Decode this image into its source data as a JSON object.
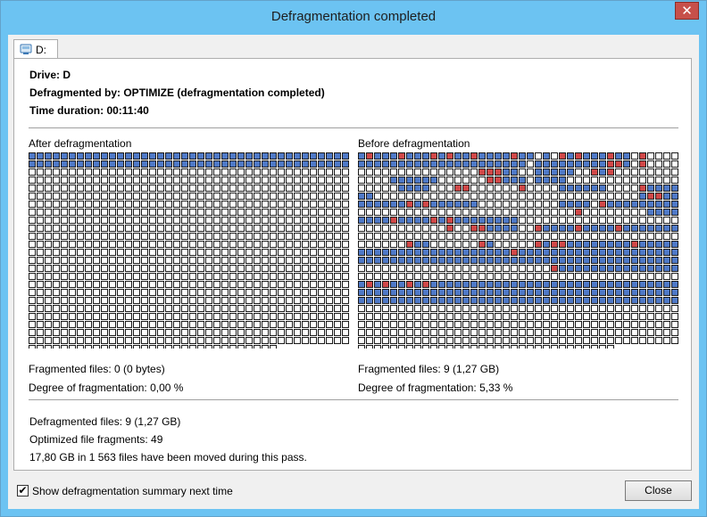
{
  "window": {
    "title": "Defragmentation completed",
    "close_glyph": "✕"
  },
  "tab": {
    "label": "D:",
    "icon": "drive-icon"
  },
  "summary": {
    "drive": "Drive: D",
    "defragmented_by": "Defragmented by: OPTIMIZE (defragmentation completed)",
    "duration": "Time duration: 00:11:40"
  },
  "after": {
    "heading": "After defragmentation",
    "fragmented_files": "Fragmented files: 0 (0 bytes)",
    "degree": "Degree of fragmentation: 0,00 %"
  },
  "before": {
    "heading": "Before defragmentation",
    "fragmented_files": "Fragmented files: 9 (1,27 GB)",
    "degree": "Degree of fragmentation: 5,33 %"
  },
  "results": {
    "defragmented_files": "Defragmented files: 9 (1,27 GB)",
    "optimized_fragments": "Optimized file fragments: 49",
    "moved": "17,80 GB in 1 563 files have been moved during this pass."
  },
  "footer": {
    "show_summary_label": "Show defragmentation summary next time",
    "show_summary_checked": true,
    "check_glyph": "✔",
    "close_label": "Close"
  },
  "colors": {
    "used": "#4f79c7",
    "fragmented": "#d04848",
    "free": "#ffffff"
  },
  "grid": {
    "cols": 40,
    "rows": 25,
    "after_full_rows": 2,
    "after_last_row_cells": 31,
    "before_last_row_cells": 32,
    "before_cells": [
      [
        0,
        "B"
      ],
      [
        1,
        "R"
      ],
      [
        2,
        "B"
      ],
      [
        3,
        "B"
      ],
      [
        4,
        "B"
      ],
      [
        5,
        "R"
      ],
      [
        6,
        "B"
      ],
      [
        7,
        "B"
      ],
      [
        8,
        "B"
      ],
      [
        9,
        "R"
      ],
      [
        10,
        "B"
      ],
      [
        11,
        "R"
      ],
      [
        12,
        "B"
      ],
      [
        13,
        "B"
      ],
      [
        14,
        "R"
      ],
      [
        15,
        "B"
      ],
      [
        16,
        "B"
      ],
      [
        17,
        "B"
      ],
      [
        18,
        "B"
      ],
      [
        19,
        "R"
      ],
      [
        20,
        "B"
      ],
      [
        21,
        "B"
      ],
      [
        23,
        "B"
      ],
      [
        25,
        "R"
      ],
      [
        26,
        "B"
      ],
      [
        27,
        "R"
      ],
      [
        28,
        "B"
      ],
      [
        29,
        "B"
      ],
      [
        30,
        "B"
      ],
      [
        31,
        "R"
      ],
      [
        32,
        "B"
      ],
      [
        33,
        "B"
      ],
      [
        35,
        "R"
      ],
      [
        40,
        "B"
      ],
      [
        41,
        "B"
      ],
      [
        42,
        "B"
      ],
      [
        43,
        "B"
      ],
      [
        44,
        "B"
      ],
      [
        45,
        "B"
      ],
      [
        46,
        "B"
      ],
      [
        47,
        "B"
      ],
      [
        48,
        "B"
      ],
      [
        49,
        "B"
      ],
      [
        50,
        "B"
      ],
      [
        51,
        "B"
      ],
      [
        52,
        "B"
      ],
      [
        53,
        "B"
      ],
      [
        54,
        "B"
      ],
      [
        55,
        "B"
      ],
      [
        56,
        "B"
      ],
      [
        57,
        "B"
      ],
      [
        58,
        "B"
      ],
      [
        59,
        "B"
      ],
      [
        60,
        "B"
      ],
      [
        62,
        "B"
      ],
      [
        63,
        "B"
      ],
      [
        64,
        "B"
      ],
      [
        65,
        "B"
      ],
      [
        66,
        "B"
      ],
      [
        67,
        "B"
      ],
      [
        68,
        "B"
      ],
      [
        69,
        "B"
      ],
      [
        70,
        "B"
      ],
      [
        71,
        "R"
      ],
      [
        72,
        "R"
      ],
      [
        73,
        "B"
      ],
      [
        75,
        "R"
      ],
      [
        95,
        "R"
      ],
      [
        96,
        "R"
      ],
      [
        97,
        "R"
      ],
      [
        98,
        "B"
      ],
      [
        99,
        "B"
      ],
      [
        102,
        "B"
      ],
      [
        103,
        "B"
      ],
      [
        104,
        "B"
      ],
      [
        105,
        "B"
      ],
      [
        106,
        "B"
      ],
      [
        109,
        "R"
      ],
      [
        110,
        "B"
      ],
      [
        111,
        "R"
      ],
      [
        124,
        "B"
      ],
      [
        125,
        "B"
      ],
      [
        126,
        "B"
      ],
      [
        127,
        "B"
      ],
      [
        128,
        "B"
      ],
      [
        129,
        "B"
      ],
      [
        136,
        "R"
      ],
      [
        137,
        "R"
      ],
      [
        138,
        "B"
      ],
      [
        139,
        "B"
      ],
      [
        140,
        "B"
      ],
      [
        142,
        "B"
      ],
      [
        143,
        "B"
      ],
      [
        144,
        "B"
      ],
      [
        145,
        "B"
      ],
      [
        165,
        "B"
      ],
      [
        166,
        "B"
      ],
      [
        167,
        "B"
      ],
      [
        168,
        "B"
      ],
      [
        172,
        "R"
      ],
      [
        173,
        "R"
      ],
      [
        180,
        "R"
      ],
      [
        185,
        "B"
      ],
      [
        186,
        "B"
      ],
      [
        187,
        "B"
      ],
      [
        188,
        "B"
      ],
      [
        189,
        "B"
      ],
      [
        190,
        "B"
      ],
      [
        195,
        "R"
      ],
      [
        196,
        "B"
      ],
      [
        197,
        "B"
      ],
      [
        198,
        "B"
      ],
      [
        199,
        "B"
      ],
      [
        200,
        "B"
      ],
      [
        201,
        "B"
      ],
      [
        236,
        "R"
      ],
      [
        235,
        "B"
      ],
      [
        237,
        "R"
      ],
      [
        238,
        "B"
      ],
      [
        239,
        "B"
      ],
      [
        240,
        "B"
      ],
      [
        241,
        "B"
      ],
      [
        242,
        "B"
      ],
      [
        243,
        "B"
      ],
      [
        244,
        "B"
      ],
      [
        245,
        "B"
      ],
      [
        246,
        "R"
      ],
      [
        247,
        "B"
      ],
      [
        248,
        "R"
      ],
      [
        249,
        "B"
      ],
      [
        250,
        "B"
      ],
      [
        251,
        "B"
      ],
      [
        252,
        "B"
      ],
      [
        253,
        "B"
      ],
      [
        254,
        "B"
      ],
      [
        265,
        "B"
      ],
      [
        266,
        "B"
      ],
      [
        267,
        "B"
      ],
      [
        268,
        "B"
      ],
      [
        270,
        "R"
      ],
      [
        271,
        "B"
      ],
      [
        272,
        "B"
      ],
      [
        273,
        "B"
      ],
      [
        274,
        "B"
      ],
      [
        275,
        "B"
      ],
      [
        276,
        "B"
      ],
      [
        277,
        "B"
      ],
      [
        278,
        "B"
      ],
      [
        279,
        "B"
      ],
      [
        307,
        "R"
      ],
      [
        316,
        "B"
      ],
      [
        317,
        "B"
      ],
      [
        318,
        "B"
      ],
      [
        319,
        "B"
      ],
      [
        320,
        "B"
      ],
      [
        321,
        "B"
      ],
      [
        322,
        "B"
      ],
      [
        323,
        "B"
      ],
      [
        324,
        "R"
      ],
      [
        325,
        "B"
      ],
      [
        326,
        "B"
      ],
      [
        327,
        "B"
      ],
      [
        328,
        "B"
      ],
      [
        329,
        "R"
      ],
      [
        330,
        "B"
      ],
      [
        331,
        "R"
      ],
      [
        332,
        "B"
      ],
      [
        333,
        "B"
      ],
      [
        334,
        "B"
      ],
      [
        335,
        "B"
      ],
      [
        336,
        "B"
      ],
      [
        337,
        "B"
      ],
      [
        338,
        "B"
      ],
      [
        339,
        "B"
      ],
      [
        371,
        "R"
      ],
      [
        374,
        "R"
      ],
      [
        375,
        "R"
      ],
      [
        376,
        "B"
      ],
      [
        377,
        "B"
      ],
      [
        378,
        "B"
      ],
      [
        379,
        "B"
      ],
      [
        382,
        "R"
      ],
      [
        383,
        "B"
      ],
      [
        384,
        "B"
      ],
      [
        385,
        "B"
      ],
      [
        386,
        "B"
      ],
      [
        387,
        "R"
      ],
      [
        388,
        "B"
      ],
      [
        389,
        "B"
      ],
      [
        390,
        "B"
      ],
      [
        391,
        "B"
      ],
      [
        392,
        "R"
      ],
      [
        393,
        "B"
      ],
      [
        394,
        "B"
      ],
      [
        395,
        "B"
      ],
      [
        396,
        "B"
      ],
      [
        397,
        "B"
      ],
      [
        398,
        "B"
      ],
      [
        399,
        "B"
      ],
      [
        446,
        "R"
      ],
      [
        447,
        "B"
      ],
      [
        448,
        "B"
      ],
      [
        455,
        "R"
      ],
      [
        456,
        "B"
      ],
      [
        462,
        "R"
      ],
      [
        463,
        "B"
      ],
      [
        464,
        "R"
      ],
      [
        465,
        "R"
      ],
      [
        466,
        "B"
      ],
      [
        467,
        "B"
      ],
      [
        468,
        "B"
      ],
      [
        469,
        "B"
      ],
      [
        470,
        "B"
      ],
      [
        471,
        "B"
      ],
      [
        472,
        "B"
      ],
      [
        473,
        "B"
      ],
      [
        474,
        "R"
      ],
      [
        475,
        "B"
      ],
      [
        476,
        "B"
      ],
      [
        477,
        "B"
      ],
      [
        478,
        "B"
      ],
      [
        479,
        "B"
      ],
      [
        480,
        "B"
      ],
      [
        481,
        "B"
      ],
      [
        482,
        "B"
      ],
      [
        483,
        "B"
      ],
      [
        484,
        "B"
      ],
      [
        485,
        "B"
      ],
      [
        486,
        "B"
      ],
      [
        487,
        "B"
      ],
      [
        488,
        "B"
      ],
      [
        489,
        "B"
      ],
      [
        490,
        "B"
      ],
      [
        491,
        "B"
      ],
      [
        492,
        "B"
      ],
      [
        493,
        "B"
      ],
      [
        494,
        "B"
      ],
      [
        495,
        "B"
      ],
      [
        496,
        "B"
      ],
      [
        497,
        "B"
      ],
      [
        498,
        "B"
      ],
      [
        499,
        "R"
      ],
      [
        500,
        "B"
      ],
      [
        501,
        "B"
      ],
      [
        502,
        "B"
      ],
      [
        503,
        "B"
      ],
      [
        504,
        "B"
      ],
      [
        505,
        "B"
      ],
      [
        506,
        "B"
      ],
      [
        507,
        "B"
      ],
      [
        508,
        "B"
      ],
      [
        509,
        "B"
      ],
      [
        510,
        "B"
      ],
      [
        511,
        "B"
      ],
      [
        512,
        "B"
      ],
      [
        513,
        "B"
      ],
      [
        514,
        "B"
      ],
      [
        515,
        "B"
      ],
      [
        516,
        "B"
      ],
      [
        517,
        "B"
      ],
      [
        518,
        "B"
      ],
      [
        519,
        "B"
      ],
      [
        520,
        "B"
      ],
      [
        521,
        "B"
      ],
      [
        522,
        "B"
      ],
      [
        523,
        "B"
      ],
      [
        524,
        "B"
      ],
      [
        525,
        "B"
      ],
      [
        526,
        "B"
      ],
      [
        527,
        "B"
      ],
      [
        528,
        "B"
      ],
      [
        529,
        "B"
      ],
      [
        530,
        "B"
      ],
      [
        531,
        "B"
      ],
      [
        532,
        "B"
      ],
      [
        533,
        "B"
      ],
      [
        534,
        "B"
      ],
      [
        535,
        "B"
      ],
      [
        536,
        "B"
      ],
      [
        537,
        "B"
      ],
      [
        538,
        "B"
      ],
      [
        539,
        "B"
      ],
      [
        540,
        "B"
      ],
      [
        541,
        "B"
      ],
      [
        542,
        "B"
      ],
      [
        543,
        "B"
      ],
      [
        544,
        "B"
      ],
      [
        545,
        "B"
      ],
      [
        546,
        "B"
      ],
      [
        547,
        "B"
      ],
      [
        548,
        "B"
      ],
      [
        549,
        "B"
      ],
      [
        550,
        "B"
      ],
      [
        551,
        "B"
      ],
      [
        552,
        "B"
      ],
      [
        553,
        "B"
      ],
      [
        554,
        "B"
      ],
      [
        555,
        "B"
      ],
      [
        556,
        "B"
      ],
      [
        557,
        "B"
      ],
      [
        558,
        "B"
      ],
      [
        559,
        "B"
      ],
      [
        584,
        "R"
      ],
      [
        585,
        "B"
      ],
      [
        586,
        "B"
      ],
      [
        587,
        "B"
      ],
      [
        588,
        "B"
      ],
      [
        589,
        "B"
      ],
      [
        590,
        "B"
      ],
      [
        591,
        "B"
      ],
      [
        592,
        "B"
      ],
      [
        593,
        "B"
      ],
      [
        594,
        "B"
      ],
      [
        595,
        "B"
      ],
      [
        596,
        "B"
      ],
      [
        597,
        "B"
      ],
      [
        598,
        "B"
      ],
      [
        599,
        "B"
      ],
      [
        640,
        "B"
      ],
      [
        641,
        "R"
      ],
      [
        642,
        "B"
      ],
      [
        643,
        "R"
      ],
      [
        644,
        "B"
      ],
      [
        645,
        "B"
      ],
      [
        646,
        "R"
      ],
      [
        647,
        "B"
      ],
      [
        648,
        "R"
      ],
      [
        649,
        "B"
      ],
      [
        650,
        "B"
      ],
      [
        651,
        "B"
      ],
      [
        652,
        "B"
      ],
      [
        653,
        "B"
      ],
      [
        654,
        "B"
      ],
      [
        655,
        "B"
      ],
      [
        656,
        "B"
      ],
      [
        657,
        "B"
      ],
      [
        658,
        "B"
      ],
      [
        659,
        "B"
      ],
      [
        660,
        "B"
      ],
      [
        661,
        "B"
      ],
      [
        662,
        "B"
      ],
      [
        663,
        "B"
      ],
      [
        664,
        "B"
      ],
      [
        665,
        "B"
      ],
      [
        666,
        "B"
      ],
      [
        667,
        "B"
      ],
      [
        668,
        "B"
      ],
      [
        669,
        "B"
      ],
      [
        670,
        "B"
      ],
      [
        671,
        "B"
      ],
      [
        672,
        "B"
      ],
      [
        673,
        "B"
      ],
      [
        674,
        "B"
      ],
      [
        675,
        "B"
      ],
      [
        676,
        "B"
      ],
      [
        677,
        "B"
      ],
      [
        678,
        "B"
      ],
      [
        679,
        "B"
      ],
      [
        680,
        "B"
      ],
      [
        681,
        "B"
      ],
      [
        682,
        "B"
      ],
      [
        683,
        "B"
      ],
      [
        684,
        "B"
      ],
      [
        685,
        "B"
      ],
      [
        686,
        "B"
      ],
      [
        687,
        "B"
      ],
      [
        688,
        "B"
      ],
      [
        689,
        "B"
      ],
      [
        690,
        "B"
      ],
      [
        691,
        "B"
      ],
      [
        692,
        "B"
      ],
      [
        693,
        "B"
      ],
      [
        694,
        "B"
      ],
      [
        695,
        "B"
      ],
      [
        696,
        "B"
      ],
      [
        697,
        "B"
      ],
      [
        698,
        "B"
      ],
      [
        699,
        "B"
      ],
      [
        700,
        "B"
      ],
      [
        701,
        "B"
      ],
      [
        702,
        "B"
      ],
      [
        703,
        "B"
      ],
      [
        704,
        "B"
      ],
      [
        705,
        "B"
      ],
      [
        706,
        "B"
      ],
      [
        707,
        "B"
      ],
      [
        708,
        "B"
      ],
      [
        709,
        "B"
      ],
      [
        710,
        "B"
      ],
      [
        711,
        "B"
      ],
      [
        712,
        "B"
      ],
      [
        713,
        "B"
      ],
      [
        714,
        "B"
      ],
      [
        715,
        "B"
      ],
      [
        716,
        "B"
      ],
      [
        717,
        "B"
      ],
      [
        718,
        "B"
      ],
      [
        719,
        "B"
      ],
      [
        720,
        "B"
      ],
      [
        721,
        "B"
      ],
      [
        722,
        "B"
      ],
      [
        723,
        "B"
      ],
      [
        724,
        "B"
      ],
      [
        725,
        "B"
      ],
      [
        726,
        "B"
      ],
      [
        727,
        "B"
      ],
      [
        728,
        "B"
      ],
      [
        729,
        "B"
      ],
      [
        730,
        "B"
      ],
      [
        731,
        "B"
      ],
      [
        732,
        "B"
      ],
      [
        733,
        "B"
      ],
      [
        734,
        "B"
      ],
      [
        735,
        "B"
      ],
      [
        736,
        "B"
      ],
      [
        737,
        "B"
      ],
      [
        738,
        "B"
      ],
      [
        739,
        "B"
      ],
      [
        740,
        "B"
      ],
      [
        741,
        "B"
      ],
      [
        742,
        "B"
      ],
      [
        743,
        "B"
      ],
      [
        744,
        "B"
      ],
      [
        745,
        "B"
      ],
      [
        746,
        "B"
      ],
      [
        747,
        "B"
      ],
      [
        748,
        "B"
      ],
      [
        749,
        "B"
      ],
      [
        750,
        "B"
      ],
      [
        751,
        "B"
      ],
      [
        752,
        "B"
      ],
      [
        753,
        "B"
      ],
      [
        754,
        "B"
      ],
      [
        755,
        "B"
      ],
      [
        756,
        "B"
      ],
      [
        757,
        "B"
      ],
      [
        758,
        "B"
      ],
      [
        759,
        "B"
      ]
    ]
  }
}
